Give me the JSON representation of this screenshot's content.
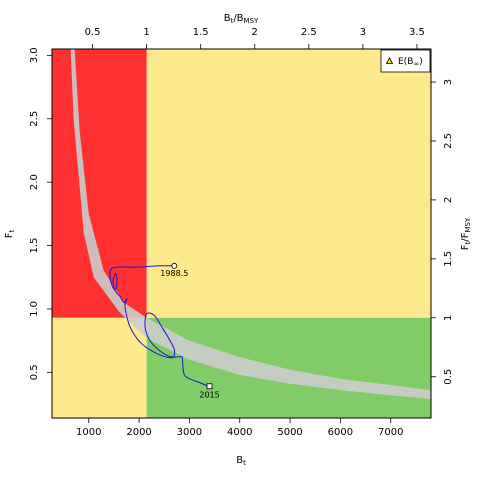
{
  "chart_data": {
    "type": "kobe_phase_plot",
    "axes": {
      "bottom": {
        "label": "B",
        "label_sub": "t",
        "range": [
          270,
          7800
        ],
        "ticks": [
          1000,
          2000,
          3000,
          4000,
          5000,
          6000,
          7000
        ]
      },
      "left": {
        "label": "F",
        "label_sub": "t",
        "range": [
          0.14,
          3.05
        ],
        "ticks": [
          0.5,
          1.0,
          1.5,
          2.0,
          2.5,
          3.0
        ],
        "tick_labels": [
          "0.5",
          "1.0",
          "1.5",
          "2.0",
          "2.5",
          "3.0"
        ]
      },
      "top": {
        "label": "B",
        "label_sub": "t",
        "label_mid": "/B",
        "label_mid_sub": "MSY",
        "range": [
          0.125,
          3.63
        ],
        "ticks": [
          0.5,
          1,
          1.5,
          2,
          2.5,
          3,
          3.5
        ],
        "tick_labels": [
          "0.5",
          "1",
          "1.5",
          "2",
          "2.5",
          "3",
          "3.5"
        ]
      },
      "right": {
        "label": "F",
        "label_sub": "t",
        "label_mid": "/F",
        "label_mid_sub": "MSY",
        "range": [
          0.15,
          3.28
        ],
        "ticks": [
          0.5,
          1,
          1.5,
          2,
          2.5,
          3
        ],
        "tick_labels": [
          "0.5",
          "1",
          "1.5",
          "2",
          "2.5",
          "3"
        ]
      }
    },
    "reference_points": {
      "Bmsy": 2150,
      "Fmsy": 0.93
    },
    "quadrant_colors": {
      "overfishing_overfished": "#ff3030",
      "caution": "#ffe98d",
      "sustainable": "#80cc66"
    },
    "equilibrium_band": {
      "color": "#cccccc",
      "lower": [
        [
          640,
          3.05
        ],
        [
          700,
          2.5
        ],
        [
          900,
          1.6
        ],
        [
          1100,
          1.25
        ],
        [
          1600,
          0.98
        ],
        [
          2150,
          0.77
        ],
        [
          3000,
          0.6
        ],
        [
          4000,
          0.48
        ],
        [
          5000,
          0.41
        ],
        [
          6000,
          0.36
        ],
        [
          7000,
          0.32
        ],
        [
          7800,
          0.29
        ]
      ],
      "upper": [
        [
          720,
          3.05
        ],
        [
          820,
          2.4
        ],
        [
          1000,
          1.75
        ],
        [
          1300,
          1.3
        ],
        [
          1700,
          1.05
        ],
        [
          2150,
          0.93
        ],
        [
          3000,
          0.75
        ],
        [
          4000,
          0.62
        ],
        [
          5000,
          0.52
        ],
        [
          6000,
          0.45
        ],
        [
          7000,
          0.4
        ],
        [
          7800,
          0.36
        ]
      ]
    },
    "trajectory": {
      "color": "#1a1acc",
      "points": [
        [
          2700,
          1.34
        ],
        [
          2400,
          1.34
        ],
        [
          2000,
          1.33
        ],
        [
          1600,
          1.33
        ],
        [
          1460,
          1.32
        ],
        [
          1420,
          1.28
        ],
        [
          1450,
          1.2
        ],
        [
          1520,
          1.15
        ],
        [
          1560,
          1.2
        ],
        [
          1540,
          1.28
        ],
        [
          1480,
          1.22
        ],
        [
          1530,
          1.14
        ],
        [
          1620,
          1.1
        ],
        [
          1700,
          1.05
        ],
        [
          1760,
          1.08
        ],
        [
          1720,
          1.02
        ],
        [
          1800,
          0.88
        ],
        [
          1950,
          0.77
        ],
        [
          2100,
          0.71
        ],
        [
          2250,
          0.67
        ],
        [
          2400,
          0.64
        ],
        [
          2550,
          0.62
        ],
        [
          2680,
          0.62
        ],
        [
          2700,
          0.68
        ],
        [
          2600,
          0.76
        ],
        [
          2450,
          0.86
        ],
        [
          2300,
          0.95
        ],
        [
          2150,
          0.96
        ],
        [
          2120,
          0.86
        ],
        [
          2200,
          0.76
        ],
        [
          2380,
          0.68
        ],
        [
          2580,
          0.63
        ],
        [
          2720,
          0.62
        ],
        [
          2850,
          0.62
        ],
        [
          2870,
          0.55
        ],
        [
          2900,
          0.48
        ],
        [
          3000,
          0.45
        ],
        [
          3200,
          0.42
        ],
        [
          3320,
          0.4
        ],
        [
          3400,
          0.39
        ]
      ],
      "start": {
        "label": "1988.5",
        "B": 2700,
        "F": 1.34
      },
      "end": {
        "label": "2015",
        "B": 3400,
        "F": 0.39
      }
    },
    "legend": {
      "position": "top-right",
      "entries": [
        {
          "label": "E(B",
          "label_sub": "∞",
          "label_end": ")",
          "marker": "triangle",
          "color": "#ffdd00"
        }
      ]
    }
  }
}
